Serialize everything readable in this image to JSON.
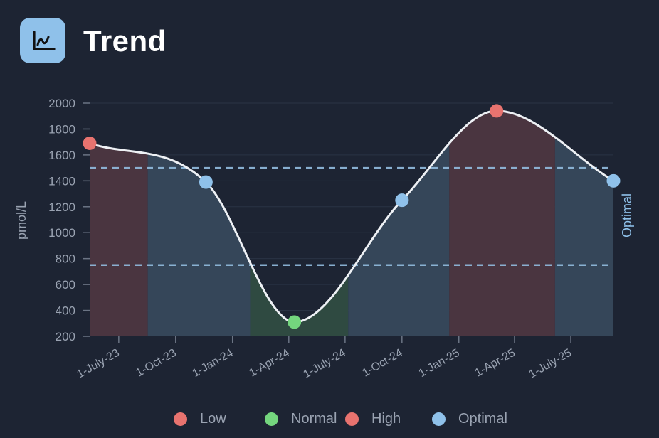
{
  "header": {
    "title": "Trend",
    "icon": "line-chart-icon"
  },
  "chart_data": {
    "type": "line",
    "title": "",
    "ylabel": "pmol/L",
    "xlabel": "",
    "ylim": [
      200,
      2000
    ],
    "yticks": [
      200,
      400,
      600,
      800,
      1000,
      1200,
      1400,
      1600,
      1800,
      2000
    ],
    "xlim": [
      "2023-05-15",
      "2025-09-08"
    ],
    "xticks": [
      {
        "date": "2023-07-01",
        "label": "1-July-23"
      },
      {
        "date": "2023-10-01",
        "label": "1-Oct-23"
      },
      {
        "date": "2024-01-01",
        "label": "1-Jan-24"
      },
      {
        "date": "2024-04-01",
        "label": "1-Apr-24"
      },
      {
        "date": "2024-07-01",
        "label": "1-July-24"
      },
      {
        "date": "2024-10-01",
        "label": "1-Oct-24"
      },
      {
        "date": "2025-01-01",
        "label": "1-Jan-25"
      },
      {
        "date": "2025-04-01",
        "label": "1-Apr-25"
      },
      {
        "date": "2025-07-01",
        "label": "1-July-25"
      }
    ],
    "grid": true,
    "points": [
      {
        "date": "2023-05-15",
        "value": 1690,
        "color": "#e8736f"
      },
      {
        "date": "2023-11-19",
        "value": 1390,
        "color": "#8fc1ea"
      },
      {
        "date": "2024-04-10",
        "value": 310,
        "color": "#74d67e"
      },
      {
        "date": "2024-10-01",
        "value": 1250,
        "color": "#8fc1ea"
      },
      {
        "date": "2025-03-03",
        "value": 1940,
        "color": "#e8736f"
      },
      {
        "date": "2025-09-08",
        "value": 1400,
        "color": "#8fc1ea"
      }
    ],
    "reference_range": {
      "label": "Optimal",
      "low": 750,
      "high": 1500,
      "color": "#8fc1ea"
    },
    "legend": {
      "placement": "bottom",
      "items": [
        {
          "label": "Low",
          "color": "#e8736f"
        },
        {
          "label": "Normal",
          "color": "#74d67e"
        },
        {
          "label": "High",
          "color": "#e8736f"
        },
        {
          "label": "Optimal",
          "color": "#8fc1ea"
        }
      ]
    }
  }
}
